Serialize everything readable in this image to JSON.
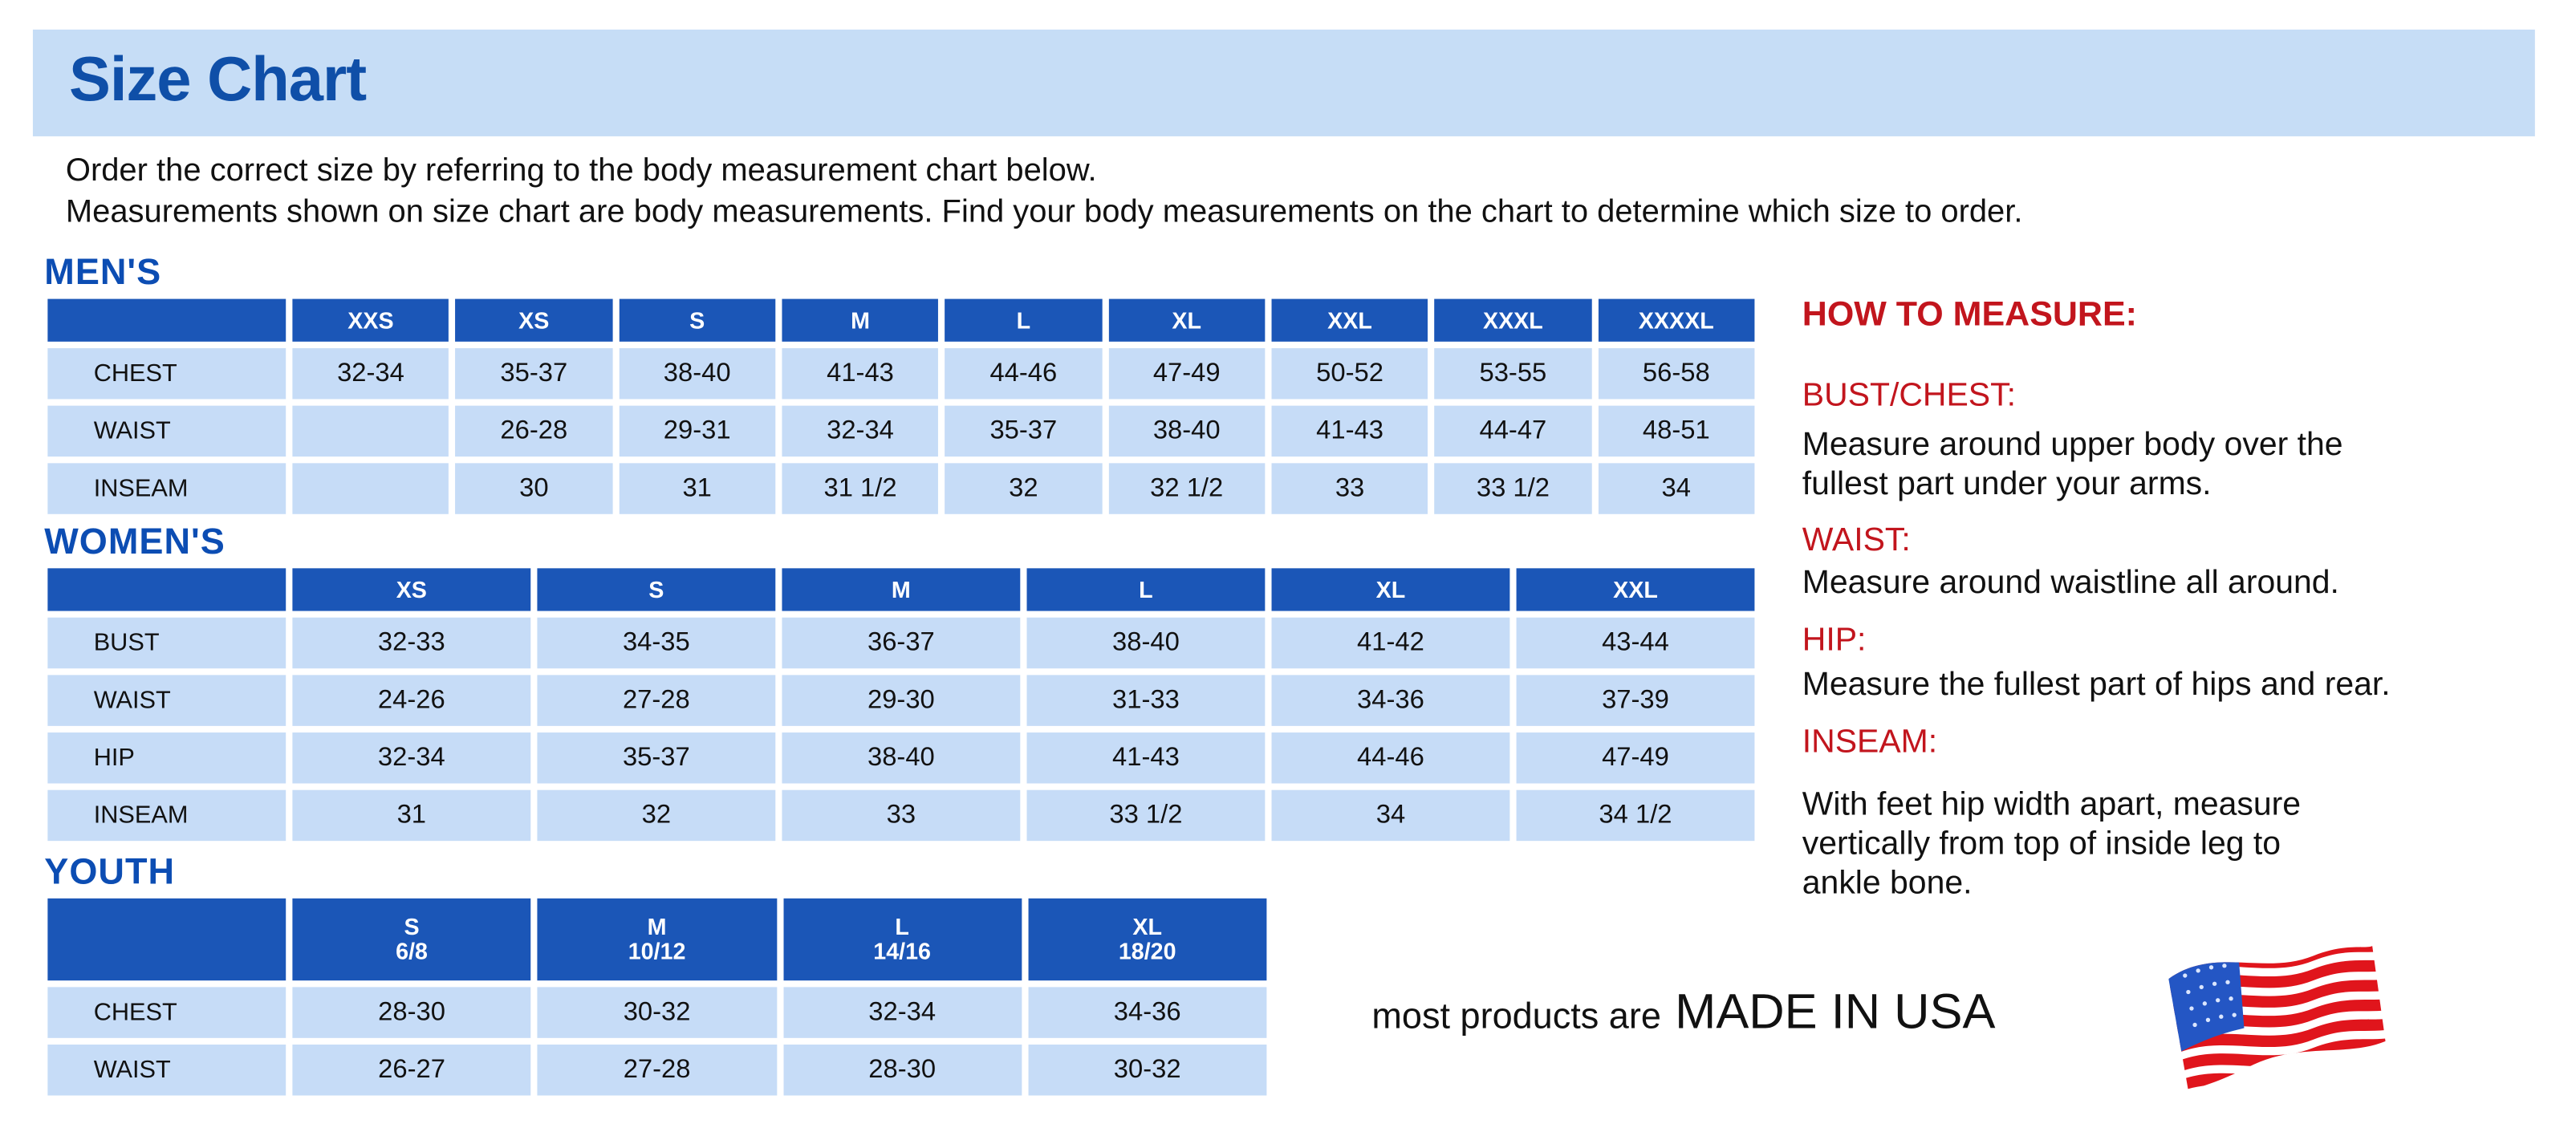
{
  "title": "Size Chart",
  "intro": [
    "Order the correct size by referring to the body measurement chart below.",
    "Measurements shown on size chart are body measurements.  Find your body measurements on the chart to determine which size to order."
  ],
  "mens": {
    "label": "MEN'S",
    "sizes": [
      "XXS",
      "XS",
      "S",
      "M",
      "L",
      "XL",
      "XXL",
      "XXXL",
      "XXXXL"
    ],
    "rows": [
      {
        "name": "CHEST",
        "values": [
          "32-34",
          "35-37",
          "38-40",
          "41-43",
          "44-46",
          "47-49",
          "50-52",
          "53-55",
          "56-58"
        ]
      },
      {
        "name": "WAIST",
        "values": [
          "",
          "26-28",
          "29-31",
          "32-34",
          "35-37",
          "38-40",
          "41-43",
          "44-47",
          "48-51"
        ]
      },
      {
        "name": "INSEAM",
        "values": [
          "",
          "30",
          "31",
          "31 1/2",
          "32",
          "32 1/2",
          "33",
          "33 1/2",
          "34"
        ]
      }
    ]
  },
  "womens": {
    "label": "WOMEN'S",
    "sizes": [
      "XS",
      "S",
      "M",
      "L",
      "XL",
      "XXL"
    ],
    "rows": [
      {
        "name": "BUST",
        "values": [
          "32-33",
          "34-35",
          "36-37",
          "38-40",
          "41-42",
          "43-44"
        ]
      },
      {
        "name": "WAIST",
        "values": [
          "24-26",
          "27-28",
          "29-30",
          "31-33",
          "34-36",
          "37-39"
        ]
      },
      {
        "name": "HIP",
        "values": [
          "32-34",
          "35-37",
          "38-40",
          "41-43",
          "44-46",
          "47-49"
        ]
      },
      {
        "name": "INSEAM",
        "values": [
          "31",
          "32",
          "33",
          "33 1/2",
          "34",
          "34 1/2"
        ]
      }
    ]
  },
  "youth": {
    "label": "YOUTH",
    "sizes": [
      {
        "size": "S",
        "range": "6/8"
      },
      {
        "size": "M",
        "range": "10/12"
      },
      {
        "size": "L",
        "range": "14/16"
      },
      {
        "size": "XL",
        "range": "18/20"
      }
    ],
    "rows": [
      {
        "name": "CHEST",
        "values": [
          "28-30",
          "30-32",
          "32-34",
          "34-36"
        ]
      },
      {
        "name": "WAIST",
        "values": [
          "26-27",
          "27-28",
          "28-30",
          "30-32"
        ]
      }
    ]
  },
  "how_to_measure": {
    "heading": "HOW TO MEASURE:",
    "items": [
      {
        "term": "BUST/CHEST:",
        "desc": [
          "Measure around upper body over the",
          "fullest part under your arms."
        ]
      },
      {
        "term": "WAIST:",
        "desc": [
          "Measure around waistline all around."
        ]
      },
      {
        "term": "HIP:",
        "desc": [
          "Measure the fullest part of hips and rear."
        ]
      },
      {
        "term": "INSEAM:",
        "desc": [
          "With feet hip width apart, measure",
          "vertically from top of inside leg to",
          "ankle bone."
        ]
      }
    ]
  },
  "footer": {
    "prefix": "most products are",
    "emphasis": "MADE IN USA",
    "icon": "us-flag-icon"
  },
  "colors": {
    "header_blue": "#1b56b7",
    "cell_blue": "#c6dcf7",
    "title_blue": "#0f4fa8",
    "accent_red": "#c2151d"
  }
}
